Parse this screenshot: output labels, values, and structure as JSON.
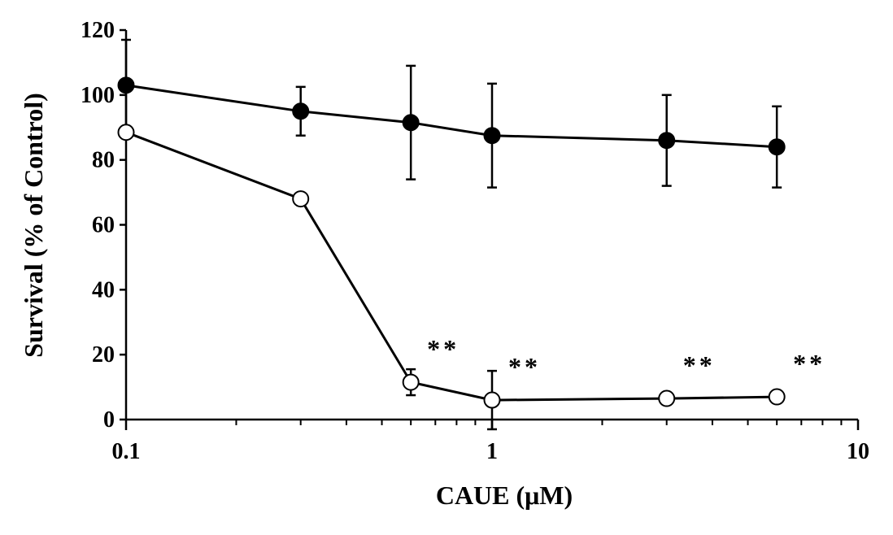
{
  "chart_data": {
    "type": "scatter",
    "xscale": "log",
    "xlim": [
      0.1,
      10
    ],
    "ylim": [
      0,
      120
    ],
    "xlabel": "CAUE (μM)",
    "ylabel": "Survival (% of Control)",
    "xticks": [
      {
        "value": 0.1,
        "label": "0.1"
      },
      {
        "value": 1,
        "label": "1"
      },
      {
        "value": 10,
        "label": "10"
      }
    ],
    "yticks": [
      {
        "value": 0,
        "label": "0"
      },
      {
        "value": 20,
        "label": "20"
      },
      {
        "value": 40,
        "label": "40"
      },
      {
        "value": 60,
        "label": "60"
      },
      {
        "value": 80,
        "label": "80"
      },
      {
        "value": 100,
        "label": "100"
      },
      {
        "value": 120,
        "label": "120"
      }
    ],
    "grid": false,
    "series": [
      {
        "marker": "filled-circle",
        "color": "#000000",
        "x": [
          0.1,
          0.3,
          0.6,
          1,
          3,
          6
        ],
        "y": [
          103,
          95,
          91.5,
          87.5,
          86,
          84
        ],
        "err": [
          14,
          7.5,
          17.5,
          16,
          14,
          12.5
        ]
      },
      {
        "marker": "open-circle",
        "color": "#000000",
        "x": [
          0.1,
          0.3,
          0.6,
          1,
          3,
          6
        ],
        "y": [
          88.5,
          68,
          11.5,
          6,
          6.5,
          7
        ],
        "err": [
          0,
          0,
          4,
          9,
          0,
          0
        ]
      }
    ],
    "annotations": [
      {
        "text": "**",
        "x": 0.6,
        "y": 11.5
      },
      {
        "text": "**",
        "x": 1,
        "y": 6
      },
      {
        "text": "**",
        "x": 3,
        "y": 6.5
      },
      {
        "text": "**",
        "x": 6,
        "y": 7
      }
    ]
  }
}
